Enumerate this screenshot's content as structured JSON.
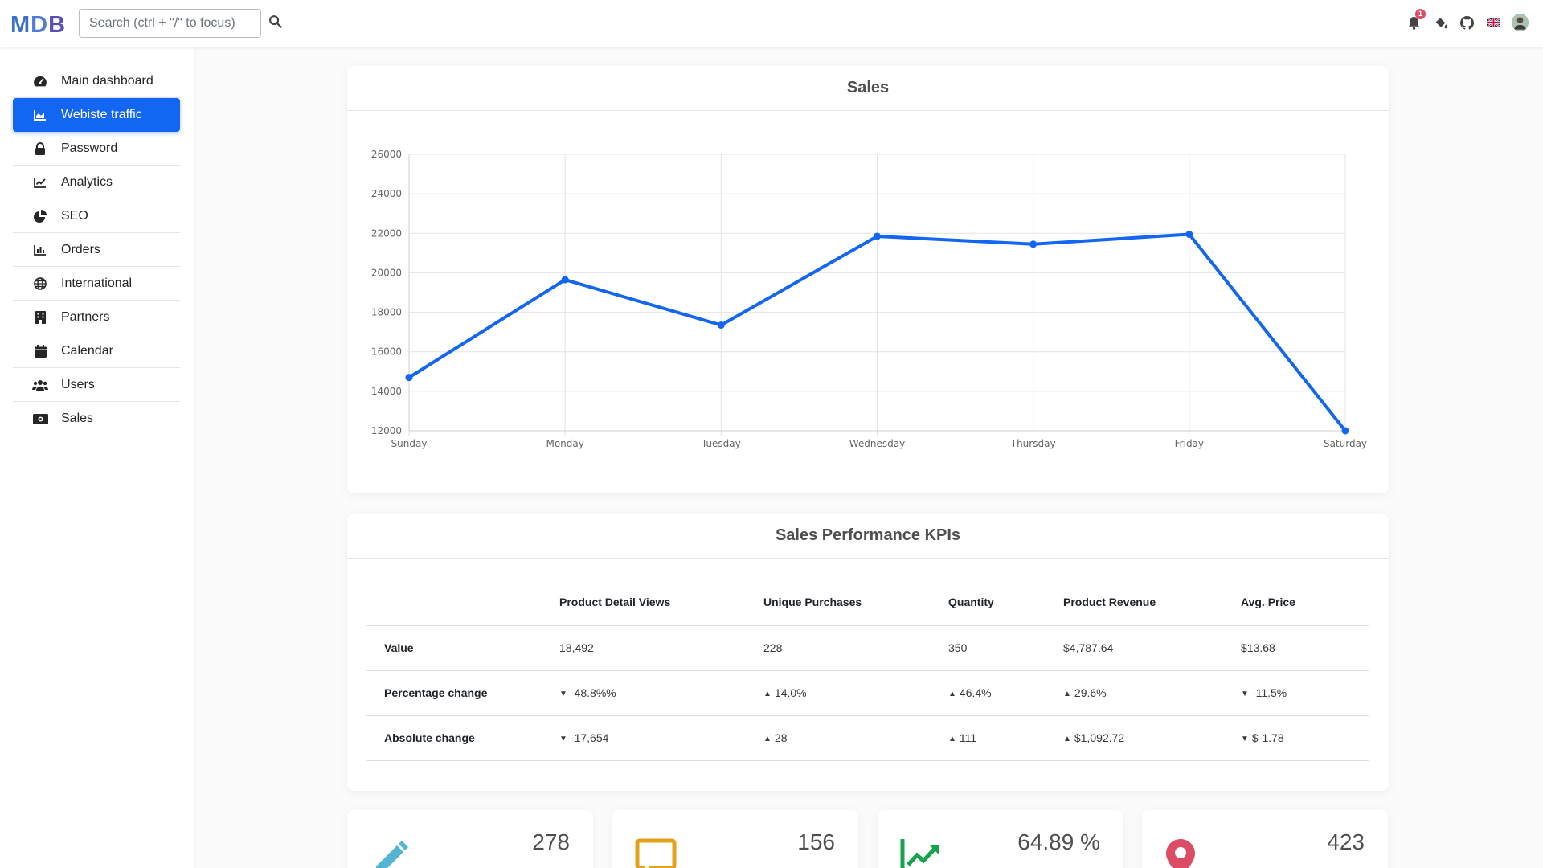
{
  "header": {
    "logo": "MDB",
    "search_placeholder": "Search (ctrl + \"/\" to focus)",
    "notification_count": "1",
    "icons": [
      "bell-icon",
      "paint-bucket-icon",
      "github-icon",
      "uk-flag-icon",
      "avatar"
    ]
  },
  "sidebar": {
    "items": [
      {
        "label": "Main dashboard",
        "icon": "tachometer-icon",
        "active": false
      },
      {
        "label": "Webiste traffic",
        "icon": "area-chart-icon",
        "active": true
      },
      {
        "label": "Password",
        "icon": "lock-icon",
        "active": false
      },
      {
        "label": "Analytics",
        "icon": "line-chart-icon",
        "active": false
      },
      {
        "label": "SEO",
        "icon": "pie-chart-icon",
        "active": false
      },
      {
        "label": "Orders",
        "icon": "bar-chart-icon",
        "active": false
      },
      {
        "label": "International",
        "icon": "globe-icon",
        "active": false
      },
      {
        "label": "Partners",
        "icon": "building-icon",
        "active": false
      },
      {
        "label": "Calendar",
        "icon": "calendar-icon",
        "active": false
      },
      {
        "label": "Users",
        "icon": "users-icon",
        "active": false
      },
      {
        "label": "Sales",
        "icon": "money-bill-icon",
        "active": false
      }
    ]
  },
  "sales_card": {
    "title": "Sales"
  },
  "chart_data": {
    "type": "line",
    "title": "Sales",
    "categories": [
      "Sunday",
      "Monday",
      "Tuesday",
      "Wednesday",
      "Thursday",
      "Friday",
      "Saturday"
    ],
    "series": [
      {
        "values": [
          14700,
          19650,
          17350,
          21850,
          21450,
          21950,
          12000
        ]
      }
    ],
    "ylim": [
      12000,
      26000
    ],
    "yticks": [
      "26000",
      "24000",
      "22000",
      "20000",
      "18000",
      "16000",
      "14000",
      "12000"
    ],
    "grid": true,
    "color": "#1266f1"
  },
  "kpi_card": {
    "title": "Sales Performance KPIs",
    "columns": [
      "",
      "Product Detail Views",
      "Unique Purchases",
      "Quantity",
      "Product Revenue",
      "Avg. Price"
    ],
    "rows": [
      {
        "label": "Value",
        "cells": [
          {
            "text": "18,492",
            "trend": ""
          },
          {
            "text": "228",
            "trend": ""
          },
          {
            "text": "350",
            "trend": ""
          },
          {
            "text": "$4,787.64",
            "trend": ""
          },
          {
            "text": "$13.68",
            "trend": ""
          }
        ]
      },
      {
        "label": "Percentage change",
        "cells": [
          {
            "text": "-48.8%%",
            "trend": "down"
          },
          {
            "text": "14.0%",
            "trend": "up"
          },
          {
            "text": "46.4%",
            "trend": "up"
          },
          {
            "text": "29.6%",
            "trend": "up"
          },
          {
            "text": "-11.5%",
            "trend": "down"
          }
        ]
      },
      {
        "label": "Absolute change",
        "cells": [
          {
            "text": "-17,654",
            "trend": "down"
          },
          {
            "text": "28",
            "trend": "up"
          },
          {
            "text": "111",
            "trend": "up"
          },
          {
            "text": "$1,092.72",
            "trend": "up"
          },
          {
            "text": "$-1.78",
            "trend": "down"
          }
        ]
      }
    ]
  },
  "stats": [
    {
      "value": "278",
      "icon": "pencil-icon",
      "color": "#54b4d3"
    },
    {
      "value": "156",
      "icon": "comment-icon",
      "color": "#e4a11b"
    },
    {
      "value": "64.89 %",
      "icon": "chart-line-icon",
      "color": "#14a44d"
    },
    {
      "value": "423",
      "icon": "map-marker-icon",
      "color": "#dc4c64"
    }
  ]
}
